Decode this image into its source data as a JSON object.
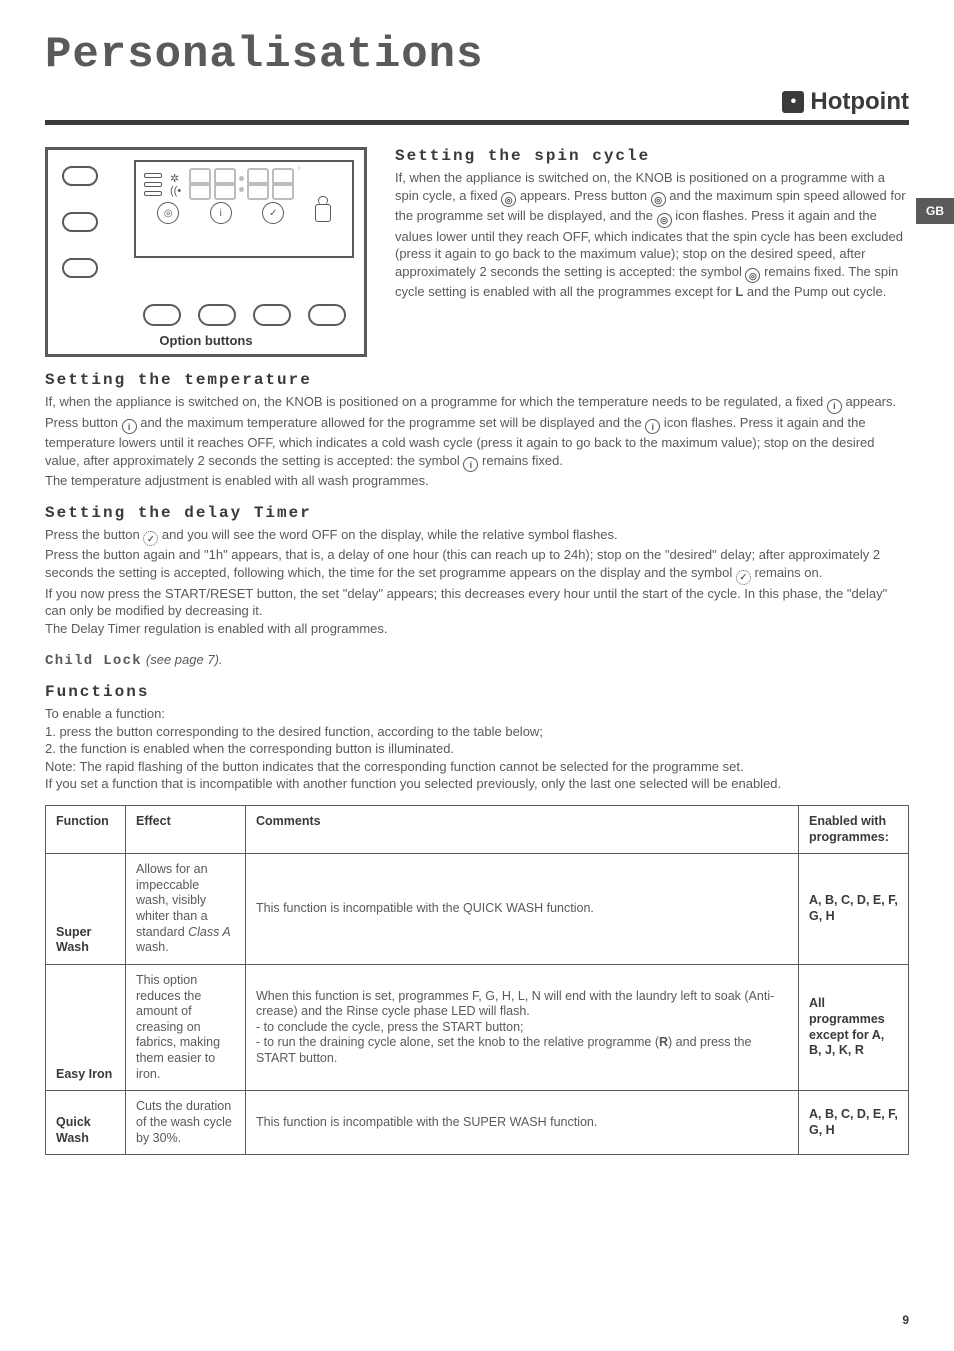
{
  "page_title": "Personalisations",
  "brand": {
    "mark": "•",
    "name": "Hotpoint"
  },
  "gb_badge": "GB",
  "page_number": "9",
  "diagram": {
    "caption": "Option buttons"
  },
  "sections": {
    "spin": {
      "head": "Setting the spin cycle",
      "t1": "If, when the appliance is switched on, the KNOB is positioned on a programme with a spin cycle, a fixed ",
      "t2": " appears. Press button ",
      "t3": " and the maximum spin speed allowed for the programme set will be displayed, and the ",
      "t4": " icon flashes. Press it again and the values lower until they reach OFF, which indicates that the spin cycle has been excluded (press it again to go back to the maximum value); stop on the desired speed, after approximately 2 seconds the setting is accepted: the symbol ",
      "t5": " remains fixed. The spin cycle setting is enabled with all the programmes except for ",
      "t6": " and the Pump out cycle.",
      "prog_L": "L"
    },
    "temp": {
      "head": "Setting the temperature",
      "t1": "If, when the appliance is switched on, the KNOB is positioned on a programme for which the temperature needs to be regulated, a fixed ",
      "t2": " appears. Press button ",
      "t3": " and the maximum temperature allowed for the programme set will be displayed and the ",
      "t4": " icon flashes. Press it again and the temperature lowers until it reaches OFF, which indicates a cold wash cycle (press it again to go back to the maximum value); stop on the desired value, after approximately 2 seconds the setting is accepted: the symbol ",
      "t5": " remains fixed.",
      "t6": "The temperature adjustment is enabled with all wash programmes."
    },
    "delay": {
      "head": "Setting the delay Timer",
      "t1": "Press the button ",
      "t2": " and you will see the word OFF on the display, while the relative symbol flashes.",
      "t3": "Press the button again and \"1h\" appears, that is, a delay of one hour (this can reach up to 24h); stop on the \"desired\" delay; after approximately 2 seconds the setting is accepted, following which, the time for the set programme appears on the display and the symbol ",
      "t4": " remains on.",
      "t5": "If you now press the START/RESET button, the set \"delay\" appears; this decreases every hour until the start of the cycle. In this phase, the \"delay\" can only be modified by decreasing it.",
      "t6": "The Delay Timer regulation is enabled with all programmes."
    },
    "childlock": {
      "label": "Child Lock",
      "ref": "(see page 7)."
    },
    "functions": {
      "head": "Functions",
      "intro": "To enable a function:",
      "line1": "1. press the button corresponding to the desired function, according to the table below;",
      "line2": "2. the function is enabled when the corresponding button is illuminated.",
      "note": "Note: The rapid flashing of the button indicates that the corresponding function cannot be selected for the programme set.",
      "extra": "If you set a function that is incompatible with another function you selected previously, only the last one selected will be enabled."
    }
  },
  "table": {
    "headers": {
      "fn": "Function",
      "effect": "Effect",
      "comments": "Comments",
      "prog": "Enabled with programmes:"
    },
    "rows": [
      {
        "fn": "Super Wash",
        "effect_pre": "Allows for an impeccable wash, visibly whiter than a standard ",
        "effect_em": "Class A",
        "effect_post": " wash.",
        "comments": "This function is incompatible with the QUICK WASH function.",
        "prog": "A, B, C, D, E, F, G, H"
      },
      {
        "fn": "Easy Iron",
        "effect": "This option reduces the amount of creasing on fabrics, making them easier to iron.",
        "comments_a": "When this function is set, programmes F, G, H, L, N will end with the laundry left to soak (Anti-crease) and the Rinse cycle phase LED will flash.",
        "comments_b": "- to conclude the cycle, press the START button;",
        "comments_c": "- to run the draining cycle alone, set the knob to the relative programme (",
        "comments_c_R": "R",
        "comments_c_tail": ") and press the START button.",
        "prog": "All programmes except for A, B, J, K, R"
      },
      {
        "fn": "Quick Wash",
        "effect": "Cuts the duration of the wash cycle by 30%.",
        "comments": "This function is incompatible with the SUPER WASH function.",
        "prog": "A, B, C, D, E, F, G, H"
      }
    ]
  },
  "colors": {
    "text": "#5a5a5a",
    "dark": "#3a3a3a",
    "dim": "#bdbdbd",
    "bg": "#ffffff"
  }
}
